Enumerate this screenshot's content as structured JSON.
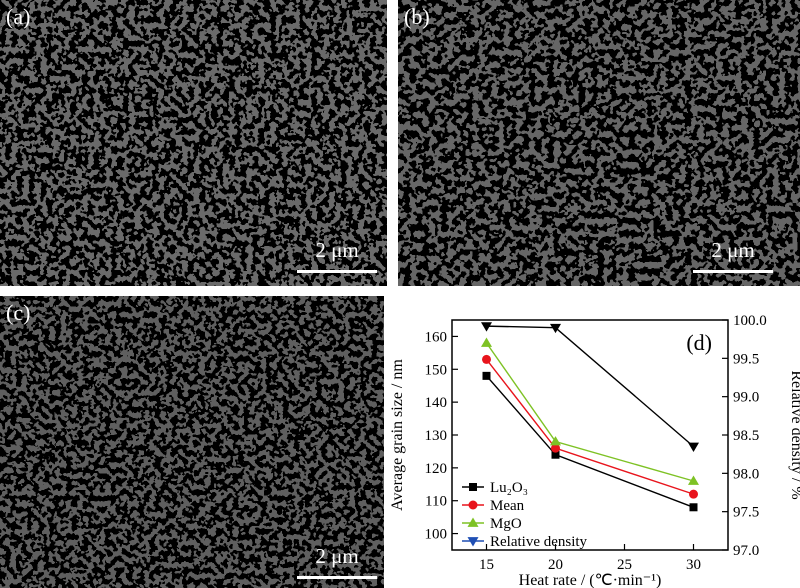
{
  "panels": [
    {
      "label": "(a)",
      "scale": "2 μm"
    },
    {
      "label": "(b)",
      "scale": "2 μm"
    },
    {
      "label": "(c)",
      "scale": "2 μm"
    }
  ],
  "chart_data": {
    "type": "line",
    "panel_label": "(d)",
    "xlabel": "Heat rate / (℃·min⁻¹)",
    "ylabel": "Average grain size / nm",
    "y2label": "Relative density / %",
    "x": [
      15,
      20,
      30
    ],
    "xlim": [
      12.5,
      32.5
    ],
    "xticks": [
      "15",
      "20",
      "25",
      "30"
    ],
    "ylim": [
      95,
      165
    ],
    "yticks": [
      "100",
      "110",
      "120",
      "130",
      "140",
      "150",
      "160"
    ],
    "y2lim": [
      97.0,
      100.0
    ],
    "y2ticks": [
      "97.0",
      "97.5",
      "98.0",
      "98.5",
      "99.0",
      "99.5",
      "100.0"
    ],
    "legend_position": "bottom-left",
    "series": [
      {
        "name": "Lu₂O₃",
        "axis": "left",
        "marker": "square",
        "color": "#000000",
        "values": [
          148,
          124,
          108
        ]
      },
      {
        "name": "Mean",
        "axis": "left",
        "marker": "circle",
        "color": "#e8141c",
        "values": [
          153,
          126,
          112
        ]
      },
      {
        "name": "MgO",
        "axis": "left",
        "marker": "triangle-up",
        "color": "#7ec225",
        "values": [
          158,
          128,
          116
        ]
      },
      {
        "name": "Relative density",
        "axis": "right",
        "marker": "triangle-down",
        "color": "#000000",
        "legend_color": "#1f4fb4",
        "values": [
          99.92,
          99.9,
          98.35
        ]
      }
    ]
  }
}
